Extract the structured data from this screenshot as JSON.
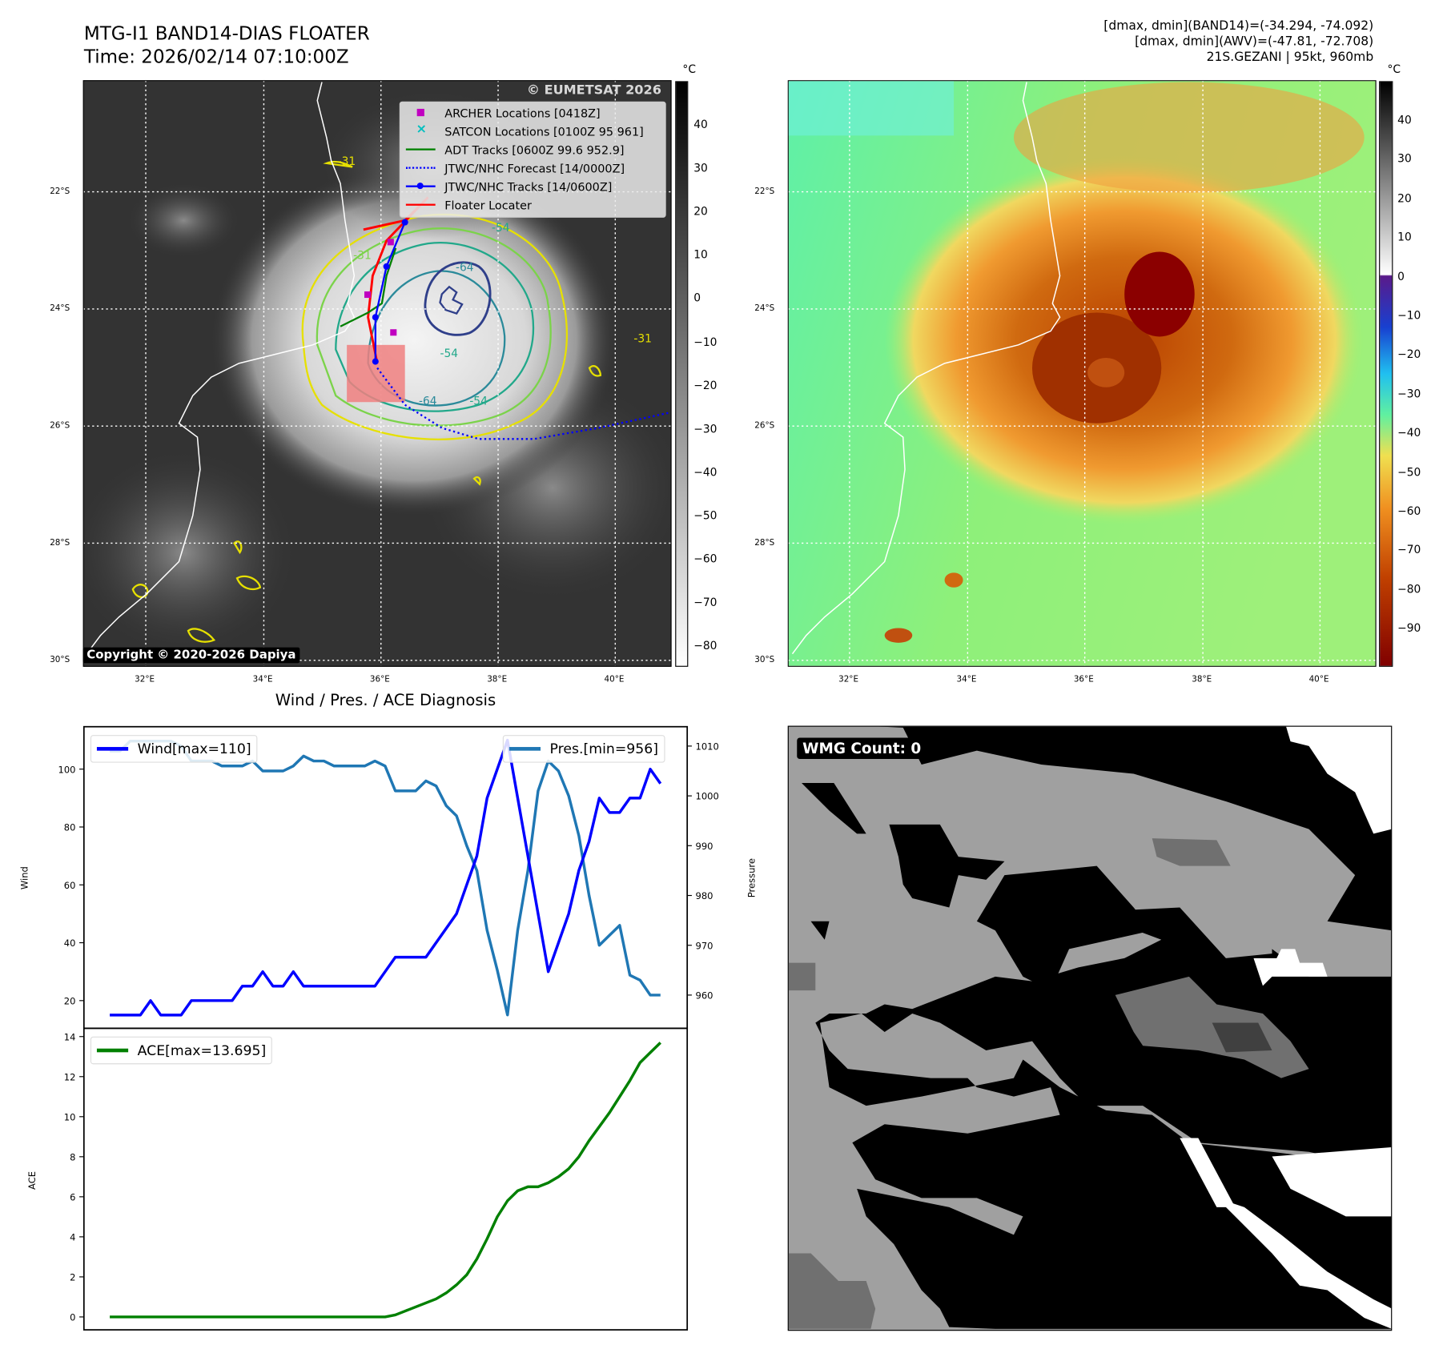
{
  "header": {
    "title_line1": "MTG-I1 BAND14-DIAS FLOATER",
    "title_line2": "Time: 2026/02/14 07:10:00Z",
    "info_line1": "[dmax, dmin](BAND14)=(-34.294, -74.092)",
    "info_line2": "[dmax, dmin](AWV)=(-47.81, -72.708)",
    "info_line3": "21S.GEZANI | 95kt, 960mb"
  },
  "maps": {
    "lat_labels": [
      "22°S",
      "24°S",
      "26°S",
      "28°S",
      "30°S"
    ],
    "lon_labels": [
      "32°E",
      "34°E",
      "36°E",
      "38°E",
      "40°E"
    ],
    "left_colorbar": {
      "unit": "°C",
      "ticks": [
        "40",
        "30",
        "20",
        "10",
        "0",
        "−10",
        "−20",
        "−30",
        "−40",
        "−50",
        "−60",
        "−70",
        "−80"
      ]
    },
    "right_colorbar": {
      "unit": "°C",
      "ticks": [
        "40",
        "30",
        "20",
        "10",
        "0",
        "−10",
        "−20",
        "−30",
        "−40",
        "−50",
        "−60",
        "−70",
        "−80",
        "−90"
      ]
    },
    "contour_labels": [
      "-31",
      "-31",
      "-54",
      "-54",
      "-64",
      "-64",
      "-54",
      "-31"
    ],
    "watermark": "© EUMETSAT 2026",
    "copyright": "Copyright © 2020-2026 Dapiya",
    "legend": [
      {
        "label": "ARCHER Locations [0418Z]",
        "color": "#c000c0",
        "kind": "square"
      },
      {
        "label": "SATCON Locations [0100Z 95 961]",
        "color": "#00bfbf",
        "kind": "x"
      },
      {
        "label": "ADT Tracks [0600Z 99.6 952.9]",
        "color": "#008000",
        "kind": "line"
      },
      {
        "label": "JTWC/NHC Forecast [14/0000Z]",
        "color": "#0000ff",
        "kind": "dotted"
      },
      {
        "label": "JTWC/NHC Tracks [14/0600Z]",
        "color": "#0000ff",
        "kind": "line-dot"
      },
      {
        "label": "Floater Locater",
        "color": "#ff0000",
        "kind": "line"
      }
    ]
  },
  "chart_data": [
    {
      "type": "line",
      "title": "Wind / Pres. / ACE Diagnosis",
      "ylabel": "Wind",
      "ylabel_right": "Pressure",
      "ylim": [
        10,
        113
      ],
      "ylim_right": [
        954,
        1012
      ],
      "yticks": [
        "20",
        "40",
        "60",
        "80",
        "100"
      ],
      "yticks_right": [
        "960",
        "970",
        "980",
        "990",
        "1000",
        "1010"
      ],
      "series": [
        {
          "name": "Wind[max=110]",
          "color": "#0000ff",
          "axis": "left",
          "values": [
            15,
            15,
            15,
            15,
            20,
            15,
            15,
            15,
            20,
            20,
            20,
            20,
            20,
            25,
            25,
            30,
            25,
            25,
            30,
            25,
            25,
            25,
            25,
            25,
            25,
            25,
            25,
            30,
            35,
            35,
            35,
            35,
            40,
            45,
            50,
            60,
            70,
            90,
            100,
            110,
            90,
            70,
            50,
            30,
            40,
            50,
            65,
            75,
            90,
            85,
            85,
            90,
            90,
            100,
            95
          ]
        },
        {
          "name": "Pres.[min=956]",
          "color": "#1f77b4",
          "axis": "right",
          "values": [
            1009,
            1009,
            1011,
            1011,
            1011,
            1011,
            1011,
            1010,
            1007,
            1007,
            1007,
            1006,
            1006,
            1006,
            1007,
            1005,
            1005,
            1005,
            1006,
            1008,
            1007,
            1007,
            1006,
            1006,
            1006,
            1006,
            1007,
            1006,
            1001,
            1001,
            1001,
            1003,
            1002,
            998,
            996,
            990,
            985,
            973,
            965,
            956,
            973,
            985,
            1001,
            1007,
            1005,
            1000,
            992,
            980,
            970,
            972,
            974,
            964,
            963,
            960,
            960
          ]
        }
      ],
      "legend_placement": [
        "upper-left",
        "upper-right"
      ]
    },
    {
      "type": "line",
      "ylabel": "ACE",
      "ylim": [
        -0.7,
        14.3
      ],
      "yticks": [
        "0",
        "2",
        "4",
        "6",
        "8",
        "10",
        "12",
        "14"
      ],
      "series": [
        {
          "name": "ACE[max=13.695]",
          "color": "#008000",
          "values": [
            0,
            0,
            0,
            0,
            0,
            0,
            0,
            0,
            0,
            0,
            0,
            0,
            0,
            0,
            0,
            0,
            0,
            0,
            0,
            0,
            0,
            0,
            0,
            0,
            0,
            0,
            0,
            0,
            0.1,
            0.3,
            0.5,
            0.7,
            0.9,
            1.2,
            1.6,
            2.1,
            2.9,
            3.9,
            5.0,
            5.8,
            6.3,
            6.5,
            6.5,
            6.7,
            7.0,
            7.4,
            8.0,
            8.8,
            9.5,
            10.2,
            11.0,
            11.8,
            12.7,
            13.2,
            13.695
          ]
        }
      ],
      "legend_placement": "upper-left"
    }
  ],
  "wmg": {
    "label": "WMG Count: 0"
  }
}
